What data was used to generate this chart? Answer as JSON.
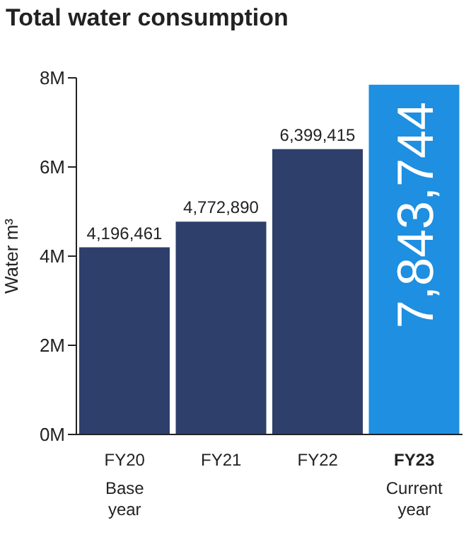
{
  "chart_data": {
    "type": "bar",
    "title": "Total water consumption",
    "ylabel": "Water m³",
    "categories": [
      "FY20\nBase\nyear",
      "FY21",
      "FY22",
      "FY23\nCurrent\nyear"
    ],
    "values": [
      4196461,
      4772890,
      6399415,
      7843744
    ],
    "value_labels": [
      "4,196,461",
      "4,772,890",
      "6,399,415",
      "7,843,744"
    ],
    "colors": [
      "#2e3f6b",
      "#2e3f6b",
      "#2e3f6b",
      "#1e8fe1"
    ],
    "ylim": [
      0,
      8000000
    ],
    "yticks": [
      {
        "value": 0,
        "label": "0M"
      },
      {
        "value": 2000000,
        "label": "2M"
      },
      {
        "value": 4000000,
        "label": "4M"
      },
      {
        "value": 6000000,
        "label": "6M"
      },
      {
        "value": 8000000,
        "label": "8M"
      }
    ],
    "grid": false
  }
}
